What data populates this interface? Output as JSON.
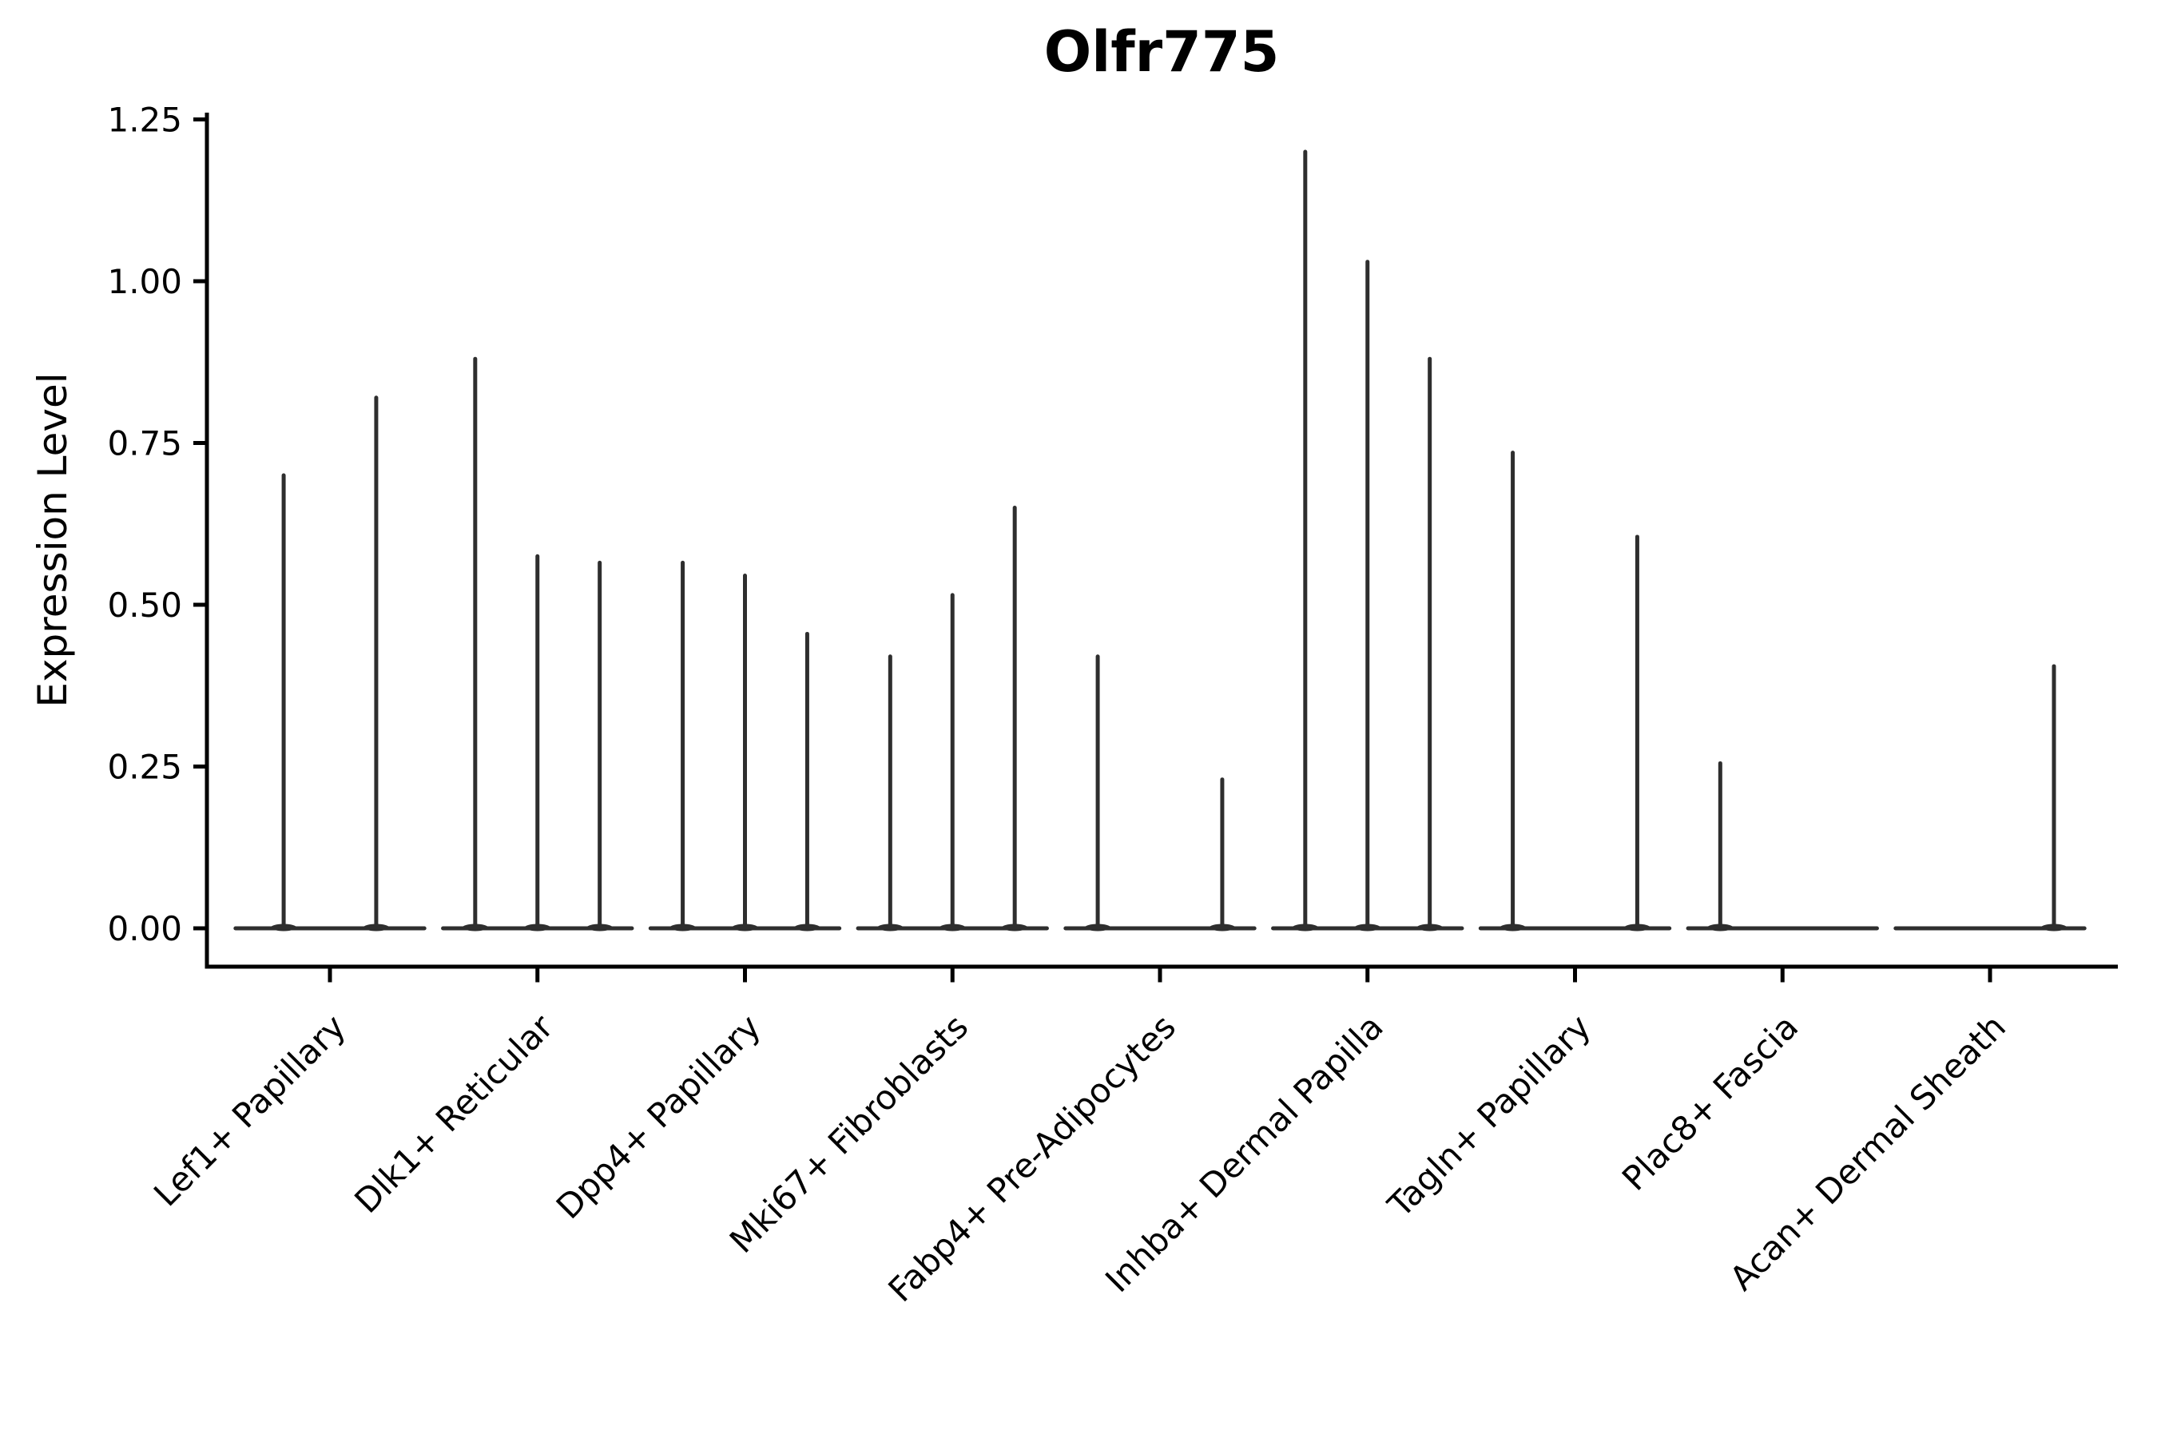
{
  "title": "Olfr775",
  "axes": {
    "ylabel": "Expression Level",
    "xlabel": ""
  },
  "chart_data": {
    "type": "violin",
    "title": "Olfr775",
    "ylabel": "Expression Level",
    "xlabel": "",
    "ylim": [
      0,
      1.25
    ],
    "yticks": [
      {
        "value": 0.0,
        "label": "0.00"
      },
      {
        "value": 0.25,
        "label": "0.25"
      },
      {
        "value": 0.5,
        "label": "0.50"
      },
      {
        "value": 0.75,
        "label": "0.75"
      },
      {
        "value": 1.0,
        "label": "1.00"
      },
      {
        "value": 1.25,
        "label": "1.25"
      }
    ],
    "categories": [
      "Lef1+ Papillary",
      "Dlk1+ Reticular",
      "Dpp4+ Papillary",
      "Mki67+ Fibroblasts",
      "Fabp4+ Pre-Adipocytes",
      "Inhba+ Dermal Papilla",
      "Tagln+ Papillary",
      "Plac8+ Fascia",
      "Acan+ Dermal Sheath"
    ],
    "groups": [
      {
        "category": "Lef1+ Papillary",
        "spikes": [
          {
            "offset": -0.223,
            "peak": 0.7
          },
          {
            "offset": 0.223,
            "peak": 0.82
          }
        ]
      },
      {
        "category": "Dlk1+ Reticular",
        "spikes": [
          {
            "offset": -0.3,
            "peak": 0.88
          },
          {
            "offset": 0.0,
            "peak": 0.575
          },
          {
            "offset": 0.3,
            "peak": 0.565
          }
        ]
      },
      {
        "category": "Dpp4+ Papillary",
        "spikes": [
          {
            "offset": -0.3,
            "peak": 0.565
          },
          {
            "offset": 0.0,
            "peak": 0.545
          },
          {
            "offset": 0.3,
            "peak": 0.455
          }
        ]
      },
      {
        "category": "Mki67+ Fibroblasts",
        "spikes": [
          {
            "offset": -0.3,
            "peak": 0.42
          },
          {
            "offset": 0.0,
            "peak": 0.515
          },
          {
            "offset": 0.3,
            "peak": 0.65
          }
        ]
      },
      {
        "category": "Fabp4+ Pre-Adipocytes",
        "spikes": [
          {
            "offset": -0.3,
            "peak": 0.42
          },
          {
            "offset": 0.3,
            "peak": 0.23
          }
        ]
      },
      {
        "category": "Inhba+ Dermal Papilla",
        "spikes": [
          {
            "offset": -0.3,
            "peak": 1.2
          },
          {
            "offset": 0.0,
            "peak": 1.03
          },
          {
            "offset": 0.3,
            "peak": 0.88
          }
        ]
      },
      {
        "category": "Tagln+ Papillary",
        "spikes": [
          {
            "offset": -0.3,
            "peak": 0.735
          },
          {
            "offset": 0.3,
            "peak": 0.605
          }
        ]
      },
      {
        "category": "Plac8+ Fascia",
        "spikes": [
          {
            "offset": -0.3,
            "peak": 0.255
          }
        ]
      },
      {
        "category": "Acan+ Dermal Sheath",
        "spikes": [
          {
            "offset": 0.308,
            "peak": 0.405
          }
        ]
      }
    ],
    "baseline_halfwidth": 0.455,
    "legend": null,
    "grid": false,
    "style": {
      "violin_color": "#2e2e2e",
      "axis_color": "#000000",
      "text_color": "#000000",
      "background": "#ffffff"
    }
  }
}
